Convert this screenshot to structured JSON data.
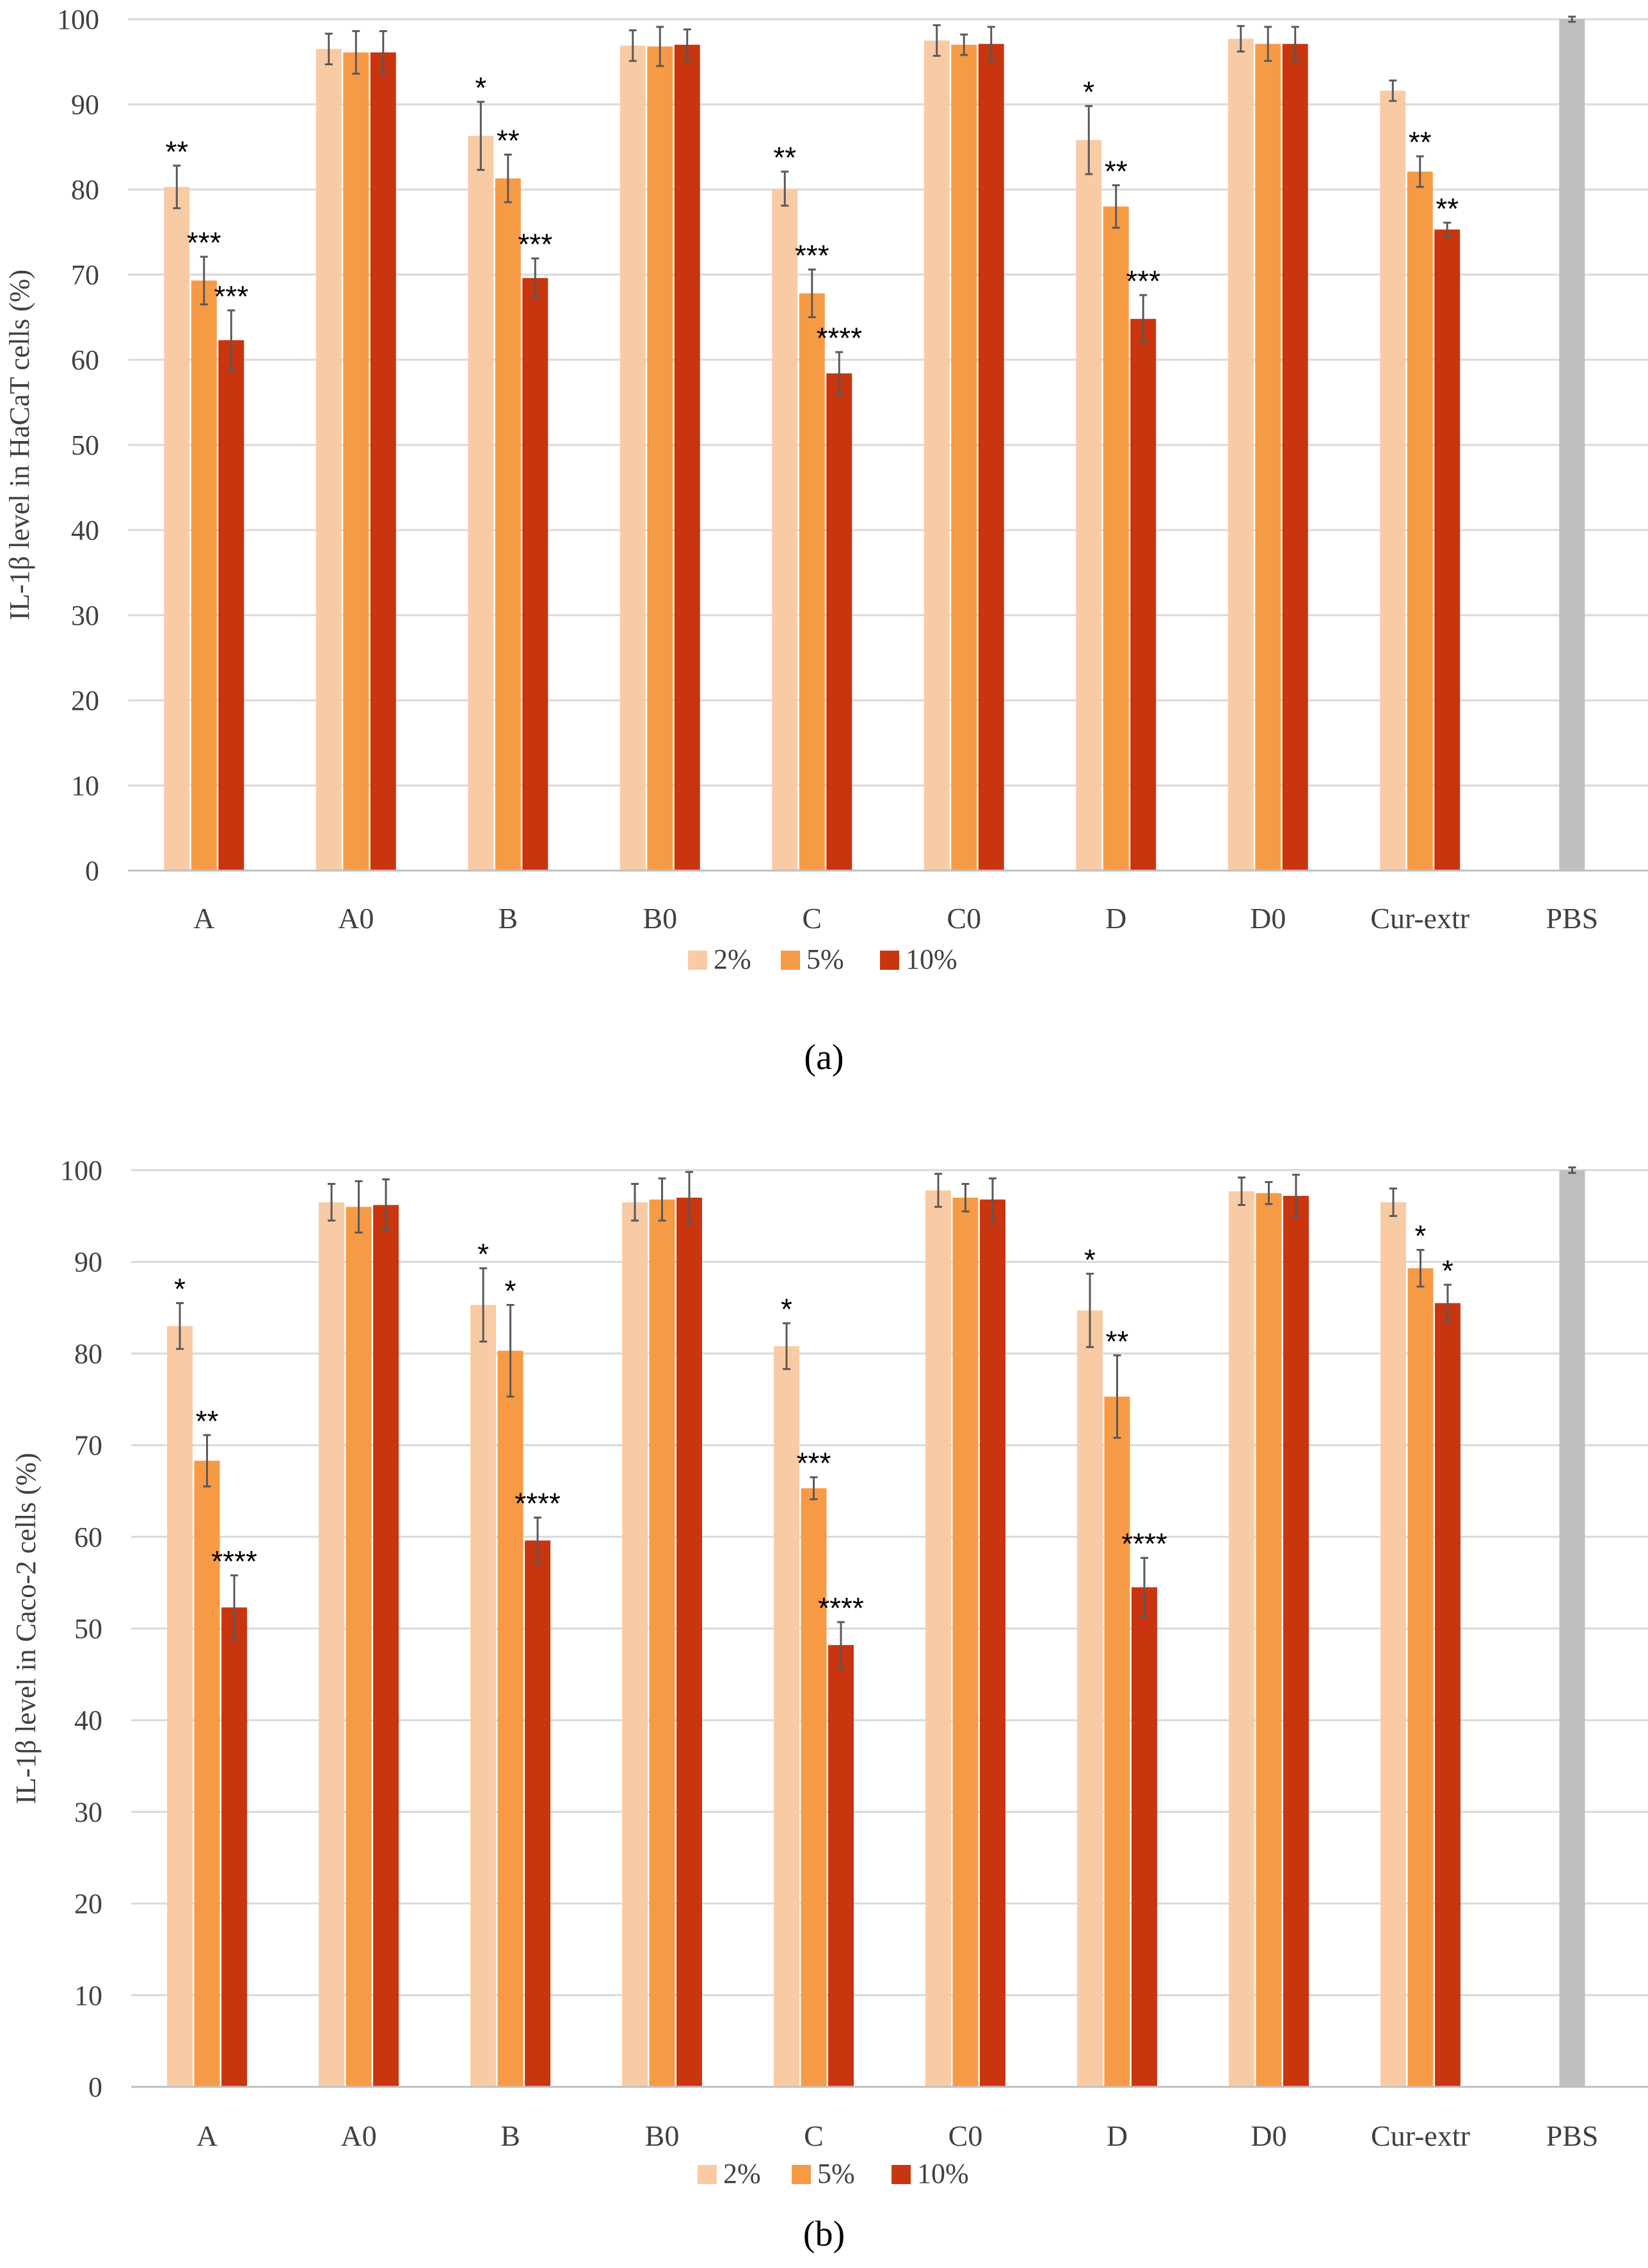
{
  "colors": {
    "c2": "#f9cba5",
    "c5": "#f79a46",
    "c10": "#c9350f",
    "pbs": "#bfbfbf"
  },
  "chart_data": [
    {
      "type": "bar",
      "panel": "(a)",
      "ylabel": "IL-1β level in HaCaT cells (%)",
      "ylim": [
        0,
        100
      ],
      "yticks": [
        0,
        10,
        20,
        30,
        40,
        50,
        60,
        70,
        80,
        90,
        100
      ],
      "categories": [
        "A",
        "A0",
        "B",
        "B0",
        "C",
        "C0",
        "D",
        "D0",
        "Cur-extr",
        "PBS"
      ],
      "series": [
        {
          "name": "2%",
          "values": [
            80.3,
            96.5,
            86.3,
            96.9,
            80.1,
            97.5,
            85.8,
            97.7,
            91.6,
            null
          ],
          "errors": [
            2.5,
            1.8,
            4.0,
            1.8,
            2.0,
            1.8,
            4.0,
            1.5,
            1.2,
            null
          ],
          "sig": [
            "**",
            "",
            "*",
            "",
            "**",
            "",
            "*",
            "",
            "",
            ""
          ]
        },
        {
          "name": "5%",
          "values": [
            69.3,
            96.1,
            81.3,
            96.8,
            67.8,
            97.0,
            78.0,
            97.1,
            82.1,
            null
          ],
          "errors": [
            2.8,
            2.5,
            2.8,
            2.3,
            2.8,
            1.2,
            2.5,
            2.0,
            1.8,
            null
          ],
          "sig": [
            "***",
            "",
            "**",
            "",
            "***",
            "",
            "**",
            "",
            "**",
            ""
          ]
        },
        {
          "name": "10%",
          "values": [
            62.3,
            96.1,
            69.6,
            97.0,
            58.4,
            97.1,
            64.8,
            97.1,
            75.3,
            100
          ],
          "errors": [
            3.5,
            2.5,
            2.3,
            1.8,
            2.5,
            2.0,
            2.8,
            2.0,
            0.8,
            0.3
          ],
          "sig": [
            "***",
            "",
            "***",
            "",
            "****",
            "",
            "***",
            "",
            "**",
            ""
          ]
        }
      ],
      "legend": [
        "2%",
        "5%",
        "10%"
      ]
    },
    {
      "type": "bar",
      "panel": "(b)",
      "ylabel": "IL-1β level in Caco-2 cells (%)",
      "ylim": [
        0,
        100
      ],
      "yticks": [
        0,
        10,
        20,
        30,
        40,
        50,
        60,
        70,
        80,
        90,
        100
      ],
      "categories": [
        "A",
        "A0",
        "B",
        "B0",
        "C",
        "C0",
        "D",
        "D0",
        "Cur-extr",
        "PBS"
      ],
      "series": [
        {
          "name": "2%",
          "values": [
            83.0,
            96.5,
            85.3,
            96.5,
            80.8,
            97.8,
            84.7,
            97.7,
            96.5,
            null
          ],
          "errors": [
            2.5,
            2.0,
            4.0,
            2.0,
            2.5,
            1.8,
            4.0,
            1.5,
            1.5,
            null
          ],
          "sig": [
            "*",
            "",
            "*",
            "",
            "*",
            "",
            "*",
            "",
            "",
            ""
          ]
        },
        {
          "name": "5%",
          "values": [
            68.3,
            96.0,
            80.3,
            96.8,
            65.3,
            97.0,
            75.3,
            97.5,
            89.3,
            null
          ],
          "errors": [
            2.8,
            2.8,
            5.0,
            2.3,
            1.2,
            1.5,
            4.5,
            1.2,
            2.0,
            null
          ],
          "sig": [
            "**",
            "",
            "*",
            "",
            "***",
            "",
            "**",
            "",
            "*",
            ""
          ]
        },
        {
          "name": "10%",
          "values": [
            52.3,
            96.2,
            59.6,
            97.0,
            48.2,
            96.8,
            54.5,
            97.2,
            85.5,
            100
          ],
          "errors": [
            3.5,
            2.8,
            2.5,
            2.8,
            2.5,
            2.3,
            3.2,
            2.3,
            2.0,
            0.3
          ],
          "sig": [
            "****",
            "",
            "****",
            "",
            "****",
            "",
            "****",
            "",
            "*",
            ""
          ]
        }
      ],
      "legend": [
        "2%",
        "5%",
        "10%"
      ]
    }
  ]
}
